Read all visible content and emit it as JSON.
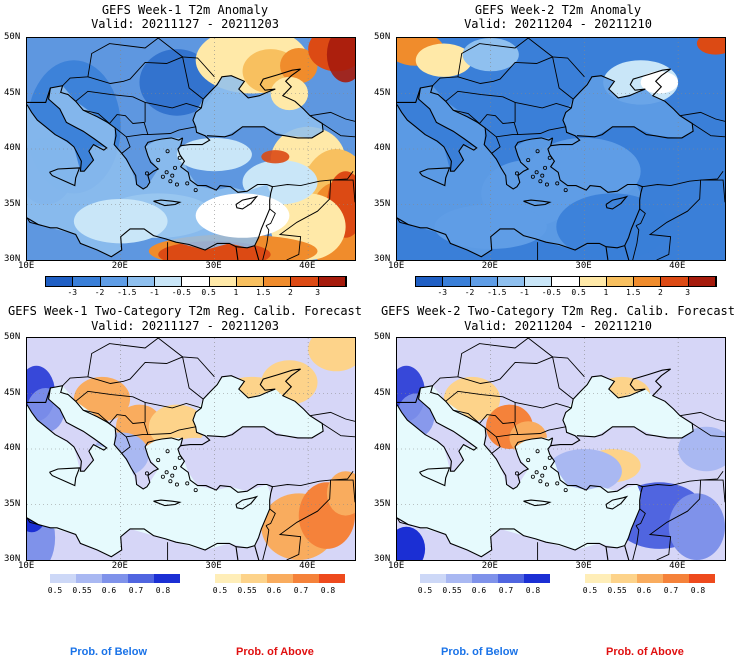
{
  "panels": [
    {
      "title": "GEFS Week-1 T2m Anomaly",
      "valid": "Valid: 20211127 - 20211203"
    },
    {
      "title": "GEFS Week-2 T2m Anomaly",
      "valid": "Valid: 20211204 - 20211210"
    },
    {
      "title": "GEFS Week-1 Two-Category T2m Reg. Calib. Forecast",
      "valid": "Valid: 20211127 - 20211203"
    },
    {
      "title": "GEFS Week-2 Two-Category T2m Reg. Calib. Forecast",
      "valid": "Valid: 20211204 - 20211210"
    }
  ],
  "axes": {
    "lat_labels": [
      "50N",
      "45N",
      "40N",
      "35N",
      "30N"
    ],
    "lon_labels": [
      "10E",
      "20E",
      "30E",
      "40E"
    ]
  },
  "anomaly_colorbar": {
    "labels": [
      "-3",
      "-2",
      "-1.5",
      "-1",
      "-0.5",
      "0.5",
      "1",
      "1.5",
      "2",
      "3"
    ],
    "colors": [
      "#1f5fc4",
      "#3a7fd8",
      "#5f9de6",
      "#8fc0ef",
      "#c9e6f8",
      "#ffffff",
      "#ffe9a8",
      "#f8c05f",
      "#f08c2c",
      "#dc4a14",
      "#a61b0c"
    ]
  },
  "prob_colorbar": {
    "below_labels": [
      "0.5",
      "0.55",
      "0.6",
      "0.7",
      "0.8"
    ],
    "above_labels": [
      "0.5",
      "0.55",
      "0.6",
      "0.7",
      "0.8"
    ],
    "below_colors": [
      "#cdd8f7",
      "#a9b8f2",
      "#7f92ea",
      "#5065e0",
      "#1b2fd4"
    ],
    "above_colors": [
      "#ffeeb8",
      "#fdd38a",
      "#f9ac5e",
      "#f5823a",
      "#ee4a1d"
    ]
  },
  "footer": {
    "below": "Prob. of Below",
    "above": "Prob. of Above",
    "below_color": "#1a73e8",
    "above_color": "#e01010"
  }
}
